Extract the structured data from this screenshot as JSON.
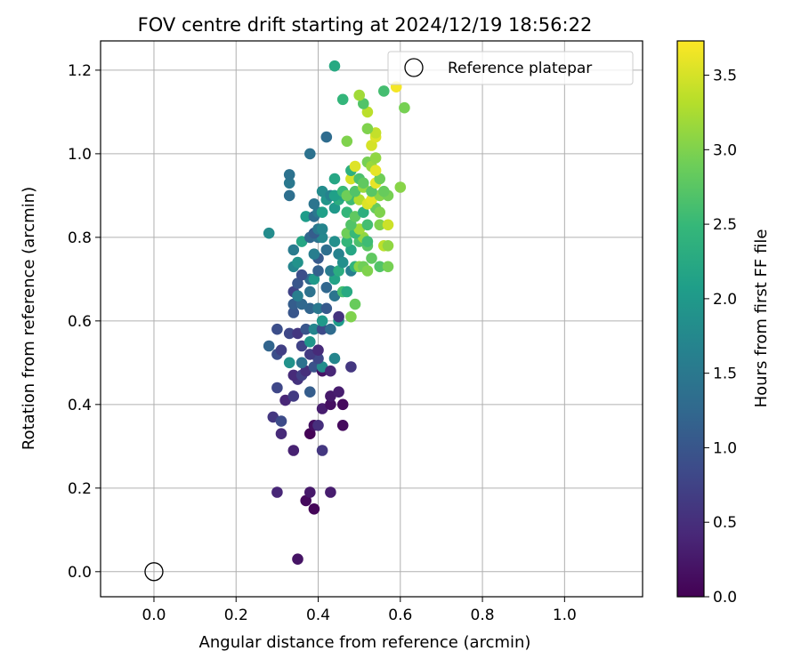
{
  "chart_data": {
    "type": "scatter",
    "title": "FOV centre drift starting at 2024/12/19 18:56:22",
    "xlabel": "Angular distance from reference (arcmin)",
    "ylabel": "Rotation from reference (arcmin)",
    "xlim": [
      -0.13,
      1.19
    ],
    "ylim": [
      -0.06,
      1.27
    ],
    "xticks": [
      0.0,
      0.2,
      0.4,
      0.6,
      0.8,
      1.0
    ],
    "yticks": [
      0.0,
      0.2,
      0.4,
      0.6,
      0.8,
      1.0,
      1.2
    ],
    "xtick_labels": [
      "0.0",
      "0.2",
      "0.4",
      "0.6",
      "0.8",
      "1.0"
    ],
    "ytick_labels": [
      "0.0",
      "0.2",
      "0.4",
      "0.6",
      "0.8",
      "1.0",
      "1.2"
    ],
    "grid": true,
    "legend": {
      "position": "upper right",
      "label": "Reference platepar"
    },
    "reference_point": {
      "x": 0.0,
      "y": 0.0,
      "label": "Reference platepar"
    },
    "colorbar": {
      "label": "Hours from first FF file",
      "min": 0.0,
      "max": 3.73,
      "ticks": [
        0.0,
        0.5,
        1.0,
        1.5,
        2.0,
        2.5,
        3.0,
        3.5
      ],
      "tick_labels": [
        "0.0",
        "0.5",
        "1.0",
        "1.5",
        "2.0",
        "2.5",
        "3.0",
        "3.5"
      ],
      "colormap": "viridis"
    },
    "points_columns": [
      "x",
      "y",
      "hours"
    ],
    "points": [
      [
        0.35,
        0.03,
        0.2
      ],
      [
        0.39,
        0.15,
        0.05
      ],
      [
        0.37,
        0.17,
        0.1
      ],
      [
        0.38,
        0.19,
        0.25
      ],
      [
        0.3,
        0.19,
        0.4
      ],
      [
        0.43,
        0.19,
        0.3
      ],
      [
        0.41,
        0.29,
        0.6
      ],
      [
        0.34,
        0.29,
        0.35
      ],
      [
        0.31,
        0.33,
        0.45
      ],
      [
        0.38,
        0.33,
        0.02
      ],
      [
        0.39,
        0.35,
        0.15
      ],
      [
        0.4,
        0.35,
        0.5
      ],
      [
        0.46,
        0.35,
        0.1
      ],
      [
        0.29,
        0.37,
        0.6
      ],
      [
        0.31,
        0.36,
        0.85
      ],
      [
        0.41,
        0.39,
        0.3
      ],
      [
        0.43,
        0.4,
        0.15
      ],
      [
        0.46,
        0.4,
        0.1
      ],
      [
        0.32,
        0.41,
        0.4
      ],
      [
        0.34,
        0.42,
        0.65
      ],
      [
        0.3,
        0.44,
        0.8
      ],
      [
        0.43,
        0.42,
        0.25
      ],
      [
        0.45,
        0.43,
        0.3
      ],
      [
        0.38,
        0.43,
        1.1
      ],
      [
        0.35,
        0.46,
        0.55
      ],
      [
        0.34,
        0.47,
        0.45
      ],
      [
        0.36,
        0.47,
        0.7
      ],
      [
        0.37,
        0.48,
        0.5
      ],
      [
        0.39,
        0.49,
        0.95
      ],
      [
        0.41,
        0.48,
        0.2
      ],
      [
        0.41,
        0.49,
        1.8
      ],
      [
        0.43,
        0.48,
        0.4
      ],
      [
        0.48,
        0.49,
        0.6
      ],
      [
        0.33,
        0.5,
        1.9
      ],
      [
        0.36,
        0.5,
        1.4
      ],
      [
        0.4,
        0.51,
        0.8
      ],
      [
        0.44,
        0.51,
        1.7
      ],
      [
        0.3,
        0.52,
        0.9
      ],
      [
        0.38,
        0.52,
        0.65
      ],
      [
        0.31,
        0.53,
        0.7
      ],
      [
        0.4,
        0.53,
        0.45
      ],
      [
        0.28,
        0.54,
        1.2
      ],
      [
        0.36,
        0.54,
        0.75
      ],
      [
        0.38,
        0.55,
        1.95
      ],
      [
        0.33,
        0.57,
        0.8
      ],
      [
        0.3,
        0.58,
        0.9
      ],
      [
        0.35,
        0.57,
        0.6
      ],
      [
        0.37,
        0.58,
        1.0
      ],
      [
        0.39,
        0.58,
        1.7
      ],
      [
        0.41,
        0.58,
        0.85
      ],
      [
        0.43,
        0.58,
        1.3
      ],
      [
        0.34,
        0.62,
        1.0
      ],
      [
        0.45,
        0.6,
        2.05
      ],
      [
        0.41,
        0.6,
        2.0
      ],
      [
        0.45,
        0.61,
        0.55
      ],
      [
        0.48,
        0.61,
        3.0
      ],
      [
        0.38,
        0.63,
        1.2
      ],
      [
        0.4,
        0.63,
        1.5
      ],
      [
        0.42,
        0.63,
        1.05
      ],
      [
        0.34,
        0.64,
        1.1
      ],
      [
        0.36,
        0.64,
        1.25
      ],
      [
        0.44,
        0.66,
        1.45
      ],
      [
        0.34,
        0.67,
        0.75
      ],
      [
        0.35,
        0.66,
        1.6
      ],
      [
        0.38,
        0.67,
        1.4
      ],
      [
        0.42,
        0.68,
        1.25
      ],
      [
        0.46,
        0.67,
        2.6
      ],
      [
        0.47,
        0.67,
        2.25
      ],
      [
        0.49,
        0.64,
        2.85
      ],
      [
        0.35,
        0.69,
        1.0
      ],
      [
        0.38,
        0.7,
        1.3
      ],
      [
        0.39,
        0.7,
        2.0
      ],
      [
        0.44,
        0.7,
        2.15
      ],
      [
        0.36,
        0.71,
        0.9
      ],
      [
        0.4,
        0.72,
        1.15
      ],
      [
        0.43,
        0.72,
        1.55
      ],
      [
        0.45,
        0.72,
        2.3
      ],
      [
        0.48,
        0.72,
        1.6
      ],
      [
        0.49,
        0.73,
        2.4
      ],
      [
        0.34,
        0.73,
        1.7
      ],
      [
        0.35,
        0.74,
        1.9
      ],
      [
        0.4,
        0.75,
        1.05
      ],
      [
        0.45,
        0.76,
        1.65
      ],
      [
        0.46,
        0.74,
        1.85
      ],
      [
        0.5,
        0.73,
        3.05
      ],
      [
        0.51,
        0.73,
        2.9
      ],
      [
        0.52,
        0.72,
        3.0
      ],
      [
        0.53,
        0.75,
        2.8
      ],
      [
        0.55,
        0.73,
        2.7
      ],
      [
        0.57,
        0.73,
        2.95
      ],
      [
        0.34,
        0.77,
        1.55
      ],
      [
        0.39,
        0.76,
        1.6
      ],
      [
        0.42,
        0.77,
        1.35
      ],
      [
        0.48,
        0.77,
        2.2
      ],
      [
        0.52,
        0.78,
        2.75
      ],
      [
        0.56,
        0.78,
        3.35
      ],
      [
        0.57,
        0.78,
        3.1
      ],
      [
        0.36,
        0.79,
        2.2
      ],
      [
        0.38,
        0.8,
        1.25
      ],
      [
        0.4,
        0.8,
        1.4
      ],
      [
        0.41,
        0.8,
        1.75
      ],
      [
        0.44,
        0.79,
        1.85
      ],
      [
        0.47,
        0.79,
        2.45
      ],
      [
        0.5,
        0.79,
        2.65
      ],
      [
        0.51,
        0.8,
        3.1
      ],
      [
        0.52,
        0.79,
        2.55
      ],
      [
        0.28,
        0.81,
        1.8
      ],
      [
        0.39,
        0.81,
        1.1
      ],
      [
        0.4,
        0.82,
        1.5
      ],
      [
        0.41,
        0.82,
        1.7
      ],
      [
        0.47,
        0.81,
        2.9
      ],
      [
        0.49,
        0.81,
        2.5
      ],
      [
        0.5,
        0.82,
        3.2
      ],
      [
        0.48,
        0.83,
        2.7
      ],
      [
        0.52,
        0.83,
        2.6
      ],
      [
        0.55,
        0.83,
        3.0
      ],
      [
        0.57,
        0.83,
        3.45
      ],
      [
        0.37,
        0.85,
        2.05
      ],
      [
        0.39,
        0.85,
        1.3
      ],
      [
        0.4,
        0.86,
        1.5
      ],
      [
        0.41,
        0.86,
        2.1
      ],
      [
        0.44,
        0.87,
        2.0
      ],
      [
        0.47,
        0.86,
        2.45
      ],
      [
        0.49,
        0.85,
        2.8
      ],
      [
        0.51,
        0.86,
        2.35
      ],
      [
        0.54,
        0.87,
        2.85
      ],
      [
        0.55,
        0.86,
        3.0
      ],
      [
        0.39,
        0.88,
        1.45
      ],
      [
        0.42,
        0.89,
        1.95
      ],
      [
        0.45,
        0.89,
        2.3
      ],
      [
        0.46,
        0.9,
        2.15
      ],
      [
        0.48,
        0.89,
        2.55
      ],
      [
        0.5,
        0.89,
        3.3
      ],
      [
        0.52,
        0.88,
        3.55
      ],
      [
        0.53,
        0.89,
        3.6
      ],
      [
        0.55,
        0.9,
        3.05
      ],
      [
        0.57,
        0.9,
        2.95
      ],
      [
        0.33,
        0.9,
        1.35
      ],
      [
        0.41,
        0.91,
        1.8
      ],
      [
        0.43,
        0.9,
        1.65
      ],
      [
        0.44,
        0.9,
        2.1
      ],
      [
        0.46,
        0.91,
        2.5
      ],
      [
        0.47,
        0.9,
        2.9
      ],
      [
        0.49,
        0.91,
        2.7
      ],
      [
        0.51,
        0.92,
        3.15
      ],
      [
        0.53,
        0.91,
        2.75
      ],
      [
        0.56,
        0.91,
        2.85
      ],
      [
        0.6,
        0.92,
        3.05
      ],
      [
        0.33,
        0.93,
        1.5
      ],
      [
        0.44,
        0.94,
        2.2
      ],
      [
        0.48,
        0.94,
        3.5
      ],
      [
        0.5,
        0.94,
        2.65
      ],
      [
        0.51,
        0.93,
        2.8
      ],
      [
        0.54,
        0.93,
        3.6
      ],
      [
        0.55,
        0.94,
        2.9
      ],
      [
        0.33,
        0.95,
        1.4
      ],
      [
        0.48,
        0.96,
        2.35
      ],
      [
        0.49,
        0.97,
        3.55
      ],
      [
        0.52,
        0.98,
        2.95
      ],
      [
        0.53,
        0.97,
        3.15
      ],
      [
        0.54,
        0.96,
        3.6
      ],
      [
        0.54,
        0.99,
        3.1
      ],
      [
        0.38,
        1.0,
        1.4
      ],
      [
        0.47,
        1.03,
        3.0
      ],
      [
        0.53,
        1.02,
        3.5
      ],
      [
        0.54,
        1.04,
        3.55
      ],
      [
        0.42,
        1.04,
        1.3
      ],
      [
        0.54,
        1.05,
        3.4
      ],
      [
        0.52,
        1.06,
        3.0
      ],
      [
        0.52,
        1.1,
        3.35
      ],
      [
        0.61,
        1.11,
        2.95
      ],
      [
        0.51,
        1.12,
        2.7
      ],
      [
        0.46,
        1.13,
        2.45
      ],
      [
        0.5,
        1.14,
        3.2
      ],
      [
        0.56,
        1.15,
        2.6
      ],
      [
        0.59,
        1.16,
        3.68
      ],
      [
        0.44,
        1.21,
        2.25
      ]
    ]
  }
}
